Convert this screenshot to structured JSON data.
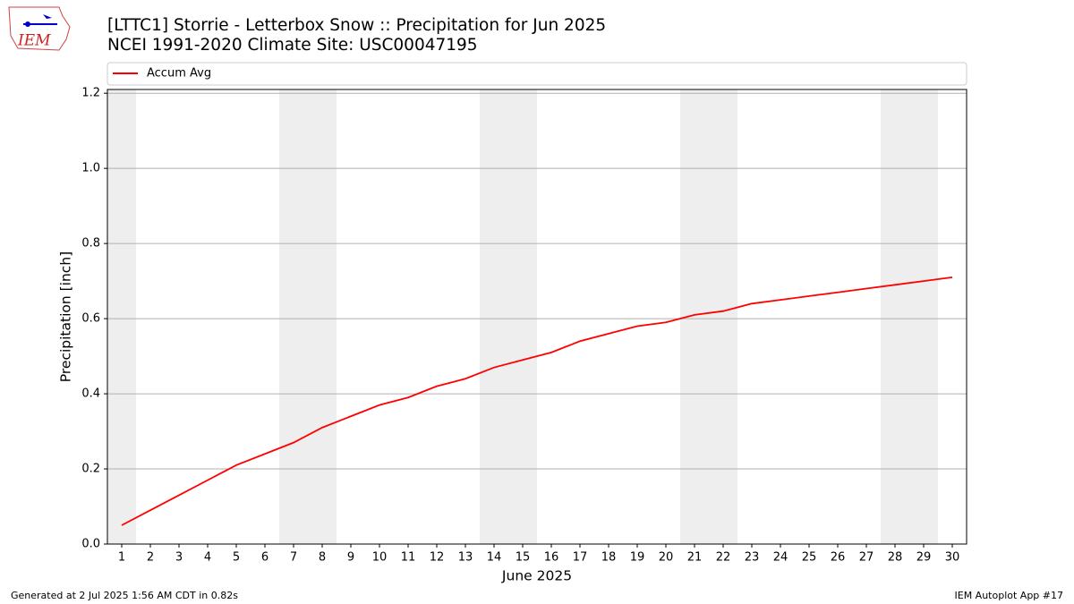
{
  "logo_text": "IEM",
  "footer_left": "Generated at 2 Jul 2025 1:56 AM CDT in 0.82s",
  "footer_right": "IEM Autoplot App #17",
  "chart_data": {
    "type": "line",
    "title": "[LTTC1] Storrie - Letterbox Snow :: Precipitation for Jun 2025",
    "subtitle": "NCEI 1991-2020 Climate Site: USC00047195",
    "x_label": "June 2025",
    "y_label": "Precipitation [inch]",
    "x": [
      1,
      2,
      3,
      4,
      5,
      6,
      7,
      8,
      9,
      10,
      11,
      12,
      13,
      14,
      15,
      16,
      17,
      18,
      19,
      20,
      21,
      22,
      23,
      24,
      25,
      26,
      27,
      28,
      29,
      30
    ],
    "series": [
      {
        "name": "Accum Avg",
        "color": "#ff0000",
        "values": [
          0.05,
          0.09,
          0.13,
          0.17,
          0.21,
          0.24,
          0.27,
          0.31,
          0.34,
          0.37,
          0.39,
          0.42,
          0.44,
          0.47,
          0.49,
          0.51,
          0.54,
          0.56,
          0.58,
          0.59,
          0.61,
          0.62,
          0.64,
          0.65,
          0.66,
          0.67,
          0.68,
          0.69,
          0.7,
          0.71
        ]
      }
    ],
    "weekend_bands": [
      [
        0.5,
        1.5
      ],
      [
        6.5,
        8.5
      ],
      [
        13.5,
        15.5
      ],
      [
        20.5,
        22.5
      ],
      [
        27.5,
        29.5
      ]
    ],
    "band_color": "#eeeeee",
    "xlim": [
      0.5,
      30.5
    ],
    "xticks": [
      1,
      2,
      3,
      4,
      5,
      6,
      7,
      8,
      9,
      10,
      11,
      12,
      13,
      14,
      15,
      16,
      17,
      18,
      19,
      20,
      21,
      22,
      23,
      24,
      25,
      26,
      27,
      28,
      29,
      30
    ],
    "ylim": [
      0,
      1.21
    ],
    "yticks": [
      {
        "value": 0,
        "label": "0.0"
      },
      0.2,
      0.4,
      0.6,
      0.8,
      {
        "value": 1,
        "label": "1.0"
      },
      1.2
    ],
    "grid": true,
    "legend_position": "top"
  }
}
